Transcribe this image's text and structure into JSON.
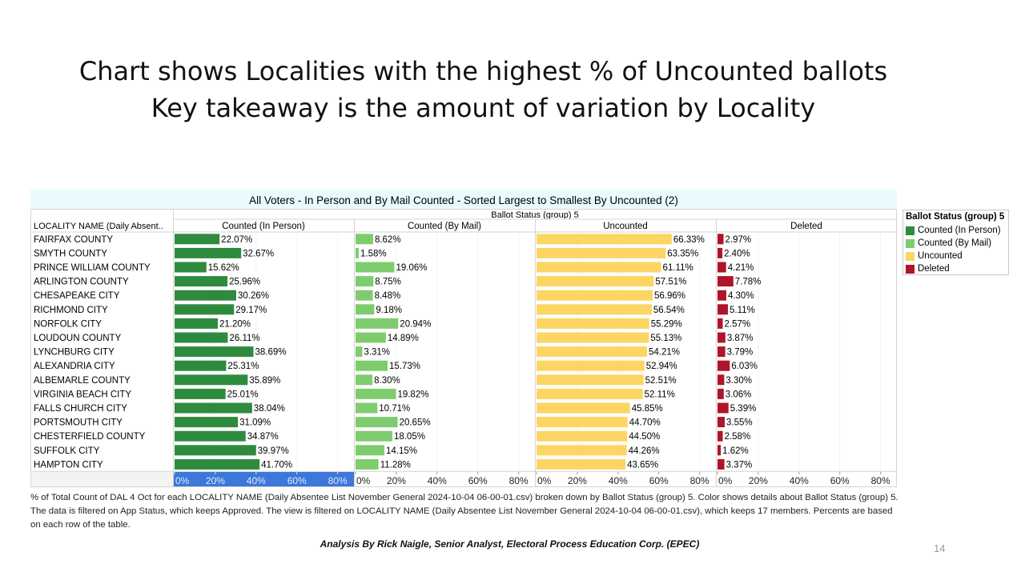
{
  "slide": {
    "title_line1": "Chart shows Localities with the highest % of Uncounted ballots",
    "title_line2": "Key takeaway is the amount of variation by Locality",
    "caption": "% of Total Count of DAL 4 Oct for each LOCALITY NAME (Daily Absentee List November General 2024-10-04 06-00-01.csv) broken down by Ballot Status (group) 5.  Color shows details about Ballot Status (group) 5. The data is filtered on App Status, which keeps Approved. The view is filtered on LOCALITY NAME (Daily Absentee List November General 2024-10-04 06-00-01.csv), which keeps 17 members. Percents are based on each row of the table.",
    "credit": "Analysis By Rick Naigle, Senior Analyst, Electoral Process Education Corp. (EPEC)",
    "page_number": "14"
  },
  "legend": {
    "title": "Ballot Status (group) 5",
    "items": [
      {
        "label": "Counted (In Person)",
        "color": "#2e8b3e"
      },
      {
        "label": "Counted (By Mail)",
        "color": "#7fcc6f"
      },
      {
        "label": "Uncounted",
        "color": "#fcd562"
      },
      {
        "label": "Deleted",
        "color": "#b0142a"
      }
    ]
  },
  "chart_data": {
    "type": "bar",
    "orientation": "horizontal",
    "title": "All Voters - In Person and By Mail Counted - Sorted Largest to Smallest By Uncounted (2)",
    "group_header": "Ballot Status (group) 5",
    "row_header": "LOCALITY NAME (Daily Absent..",
    "categories": [
      "FAIRFAX COUNTY",
      "SMYTH COUNTY",
      "PRINCE WILLIAM COUNTY",
      "ARLINGTON COUNTY",
      "CHESAPEAKE CITY",
      "RICHMOND CITY",
      "NORFOLK CITY",
      "LOUDOUN COUNTY",
      "LYNCHBURG CITY",
      "ALEXANDRIA CITY",
      "ALBEMARLE COUNTY",
      "VIRGINIA BEACH CITY",
      "FALLS CHURCH CITY",
      "PORTSMOUTH CITY",
      "CHESTERFIELD COUNTY",
      "SUFFOLK CITY",
      "HAMPTON CITY"
    ],
    "series": [
      {
        "name": "Counted (In Person)",
        "color": "#2e8b3e",
        "values": [
          22.07,
          32.67,
          15.62,
          25.96,
          30.26,
          29.17,
          21.2,
          26.11,
          38.69,
          25.31,
          35.89,
          25.01,
          38.04,
          31.09,
          34.87,
          39.97,
          41.7
        ]
      },
      {
        "name": "Counted (By Mail)",
        "color": "#7fcc6f",
        "values": [
          8.62,
          1.58,
          19.06,
          8.75,
          8.48,
          9.18,
          20.94,
          14.89,
          3.31,
          15.73,
          8.3,
          19.82,
          10.71,
          20.65,
          18.05,
          14.15,
          11.28
        ]
      },
      {
        "name": "Uncounted",
        "color": "#fcd562",
        "values": [
          66.33,
          63.35,
          61.11,
          57.51,
          56.96,
          56.54,
          55.29,
          55.13,
          54.21,
          52.94,
          52.51,
          52.11,
          45.85,
          44.7,
          44.5,
          44.26,
          43.65
        ]
      },
      {
        "name": "Deleted",
        "color": "#b0142a",
        "values": [
          2.97,
          2.4,
          4.21,
          7.78,
          4.3,
          5.11,
          2.57,
          3.87,
          3.79,
          6.03,
          3.3,
          3.06,
          5.39,
          3.55,
          2.58,
          1.62,
          3.37
        ]
      }
    ],
    "x_ticks": [
      "0%",
      "20%",
      "40%",
      "60%",
      "80%"
    ],
    "xlim": [
      0,
      88
    ],
    "unit": "%",
    "highlighted_axis_panel": "Counted (In Person)",
    "grid": true,
    "legend_position": "right"
  }
}
